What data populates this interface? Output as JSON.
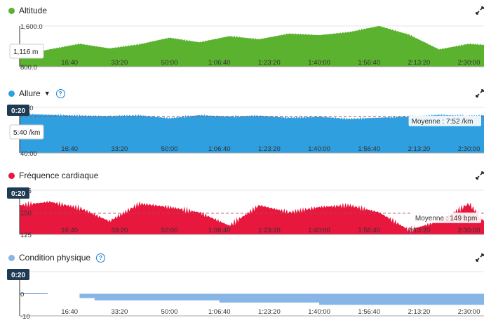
{
  "timeline": {
    "categories": [
      "16:40",
      "33:20",
      "50:00",
      "1:06:40",
      "1:23:20",
      "1:40:00",
      "1:56:40",
      "2:13:20",
      "2:30:00"
    ]
  },
  "panels": {
    "altitude": {
      "title": "Altitude",
      "color": "#5ab22e",
      "y_ticks": [
        "1,600.0",
        "800.0"
      ],
      "tooltip": "1,116 m",
      "icon": "expand-icon"
    },
    "pace": {
      "title": "Allure",
      "color": "#2f9fdf",
      "y_ticks": [
        "0:00",
        "40:00"
      ],
      "time_badge": "0:20",
      "tooltip": "5:40 /km",
      "average_label": "Moyenne : 7:52 /km",
      "icon": "expand-icon"
    },
    "heart_rate": {
      "title": "Fréquence cardiaque",
      "color": "#e8173e",
      "y_ticks": [
        "175",
        "150",
        "125"
      ],
      "time_badge": "0:20",
      "average_label": "Moyenne : 149 bpm",
      "icon": "expand-icon"
    },
    "fitness": {
      "title": "Condition physique",
      "color": "#87b6e6",
      "y_ticks": [
        "10",
        "0",
        "-10"
      ],
      "time_badge": "0:20",
      "icon": "expand-icon"
    }
  },
  "chart_data": [
    {
      "type": "area",
      "ylim": [
        800,
        1600
      ],
      "x": [
        "0:00",
        "10:00",
        "20:00",
        "30:00",
        "40:00",
        "50:00",
        "1:00:00",
        "1:10:00",
        "1:20:00",
        "1:30:00",
        "1:40:00",
        "1:50:00",
        "2:00:00",
        "2:10:00",
        "2:20:00",
        "2:30:00",
        "2:35:00"
      ],
      "values": [
        1020,
        1140,
        1250,
        1160,
        1240,
        1370,
        1280,
        1400,
        1340,
        1450,
        1420,
        1480,
        1600,
        1430,
        1140,
        1250,
        1230
      ]
    },
    {
      "type": "area",
      "ylim": [
        0,
        40
      ],
      "y_inverted": true,
      "x": [
        "0:00",
        "10:00",
        "20:00",
        "30:00",
        "40:00",
        "50:00",
        "1:00:00",
        "1:10:00",
        "1:20:00",
        "1:30:00",
        "1:40:00",
        "1:50:00",
        "2:00:00",
        "2:10:00",
        "2:20:00",
        "2:30:00",
        "2:35:00"
      ],
      "values": [
        5.7,
        6.5,
        7.2,
        7.6,
        7.0,
        9.5,
        6.8,
        8.0,
        7.3,
        9.0,
        8.2,
        10.0,
        9.0,
        8.0,
        6.5,
        7.5,
        7.0
      ],
      "average": 7.87
    },
    {
      "type": "area",
      "ylim": [
        125,
        175
      ],
      "x": [
        "0:00",
        "10:00",
        "20:00",
        "30:00",
        "40:00",
        "50:00",
        "1:00:00",
        "1:10:00",
        "1:20:00",
        "1:30:00",
        "1:40:00",
        "1:50:00",
        "2:00:00",
        "2:10:00",
        "2:20:00",
        "2:30:00",
        "2:35:00"
      ],
      "values": [
        158,
        162,
        155,
        140,
        160,
        156,
        150,
        135,
        158,
        150,
        156,
        158,
        150,
        130,
        140,
        160,
        140
      ],
      "average": 149
    },
    {
      "type": "area",
      "ylim": [
        -10,
        10
      ],
      "x": [
        "0:00",
        "16:40",
        "20:00",
        "25:00",
        "50:00",
        "1:06:40",
        "1:40:00",
        "1:56:40",
        "2:13:20",
        "2:35:00"
      ],
      "values": [
        0,
        0,
        -2,
        -3,
        -3,
        -4,
        -5,
        -5,
        -5,
        -5
      ]
    }
  ]
}
